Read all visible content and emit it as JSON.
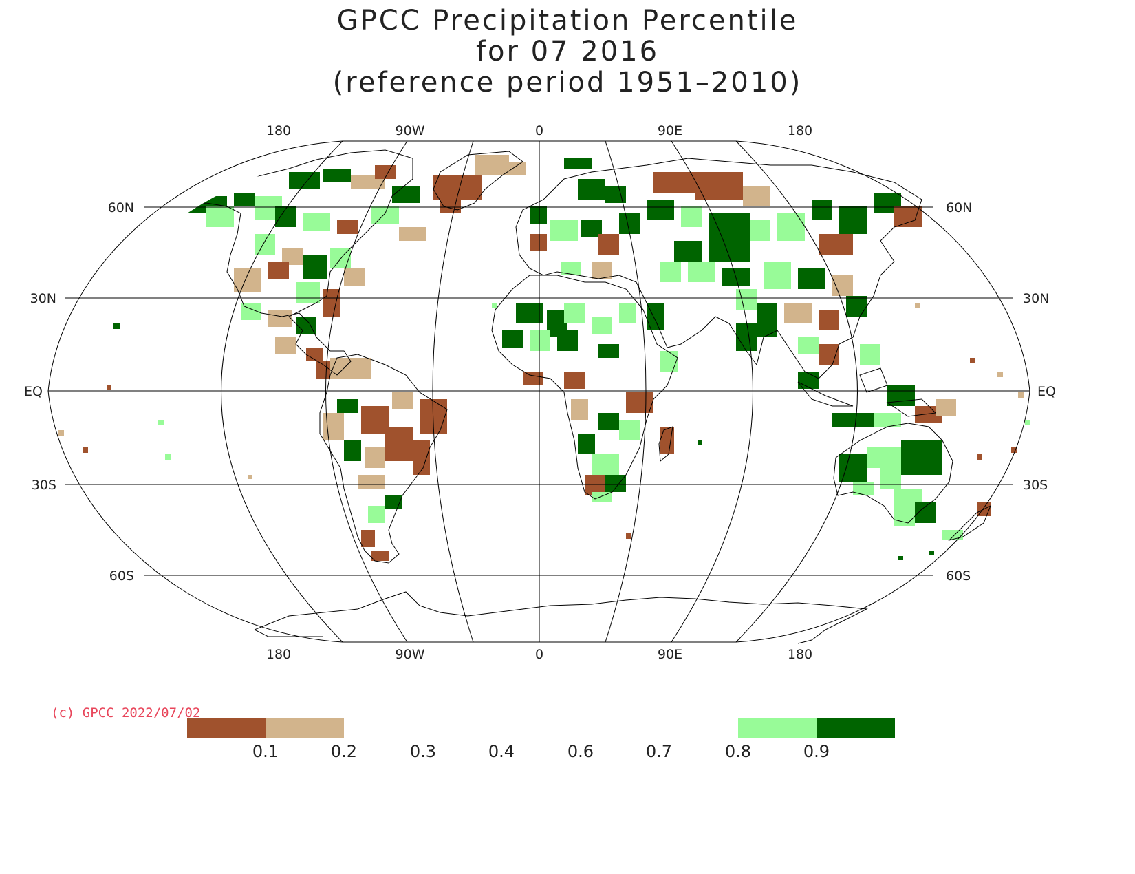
{
  "title": {
    "line1": "GPCC Precipitation Percentile",
    "line2": "for 07 2016",
    "line3": "(reference period 1951–2010)"
  },
  "map": {
    "projection": "Robinson",
    "lon_labels_top": [
      "180",
      "90W",
      "0",
      "90E",
      "180"
    ],
    "lon_labels_bottom": [
      "180",
      "90W",
      "0",
      "90E",
      "180"
    ],
    "lat_labels_left": [
      "60N",
      "30N",
      "EQ",
      "30S",
      "60S"
    ],
    "lat_labels_right": [
      "60N",
      "30N",
      "EQ",
      "30S",
      "60S"
    ]
  },
  "copyright": "(c) GPCC 2022/07/02",
  "legend": {
    "tick_labels": [
      "0.1",
      "0.2",
      "0.3",
      "0.4",
      "0.6",
      "0.7",
      "0.8",
      "0.9"
    ],
    "colors": {
      "below_0.1": "#a0522d",
      "0.1_to_0.2": "#d2b48c",
      "0.8_to_0.9": "#98fb98",
      "above_0.9": "#006400"
    }
  }
}
